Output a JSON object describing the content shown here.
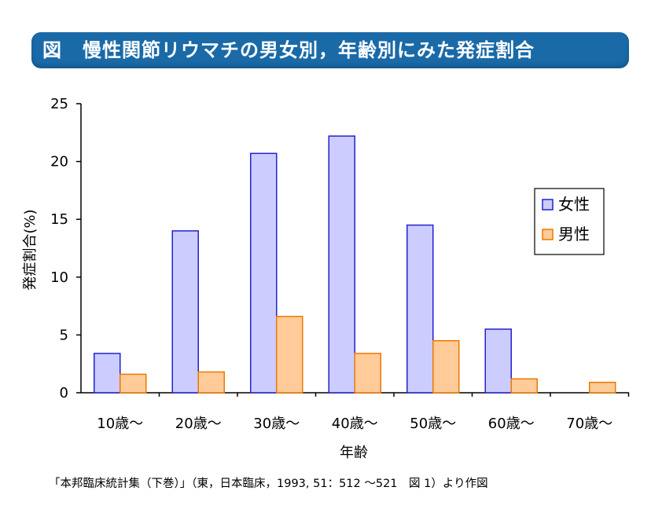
{
  "title": {
    "mark": "図",
    "text": "慢性関節リウマチの男女別，年齢別にみた発症割合"
  },
  "source_note": "「本邦臨床統計集（下巻）」（東，日本臨床，1993, 51：512 ～521　図 1）より作図",
  "colors": {
    "banner": "#1a6aa8",
    "female_fill": "#ccccff",
    "female_stroke": "#2222cc",
    "male_fill": "#ffcc99",
    "male_stroke": "#ee7700"
  },
  "chart_data": {
    "type": "bar",
    "categories": [
      "10歳～",
      "20歳～",
      "30歳～",
      "40歳～",
      "50歳～",
      "60歳～",
      "70歳～"
    ],
    "series": [
      {
        "name": "女性",
        "values": [
          3.4,
          14.0,
          20.7,
          22.2,
          14.5,
          5.5,
          null
        ]
      },
      {
        "name": "男性",
        "values": [
          1.6,
          1.8,
          6.6,
          3.4,
          4.5,
          1.2,
          0.9
        ]
      }
    ],
    "xlabel": "年齢",
    "ylabel": "発症割合(%)",
    "ylim": [
      0,
      25
    ],
    "yticks": [
      "0",
      "5",
      "10",
      "15",
      "20",
      "25"
    ],
    "grid": false,
    "legend_position": "right"
  }
}
